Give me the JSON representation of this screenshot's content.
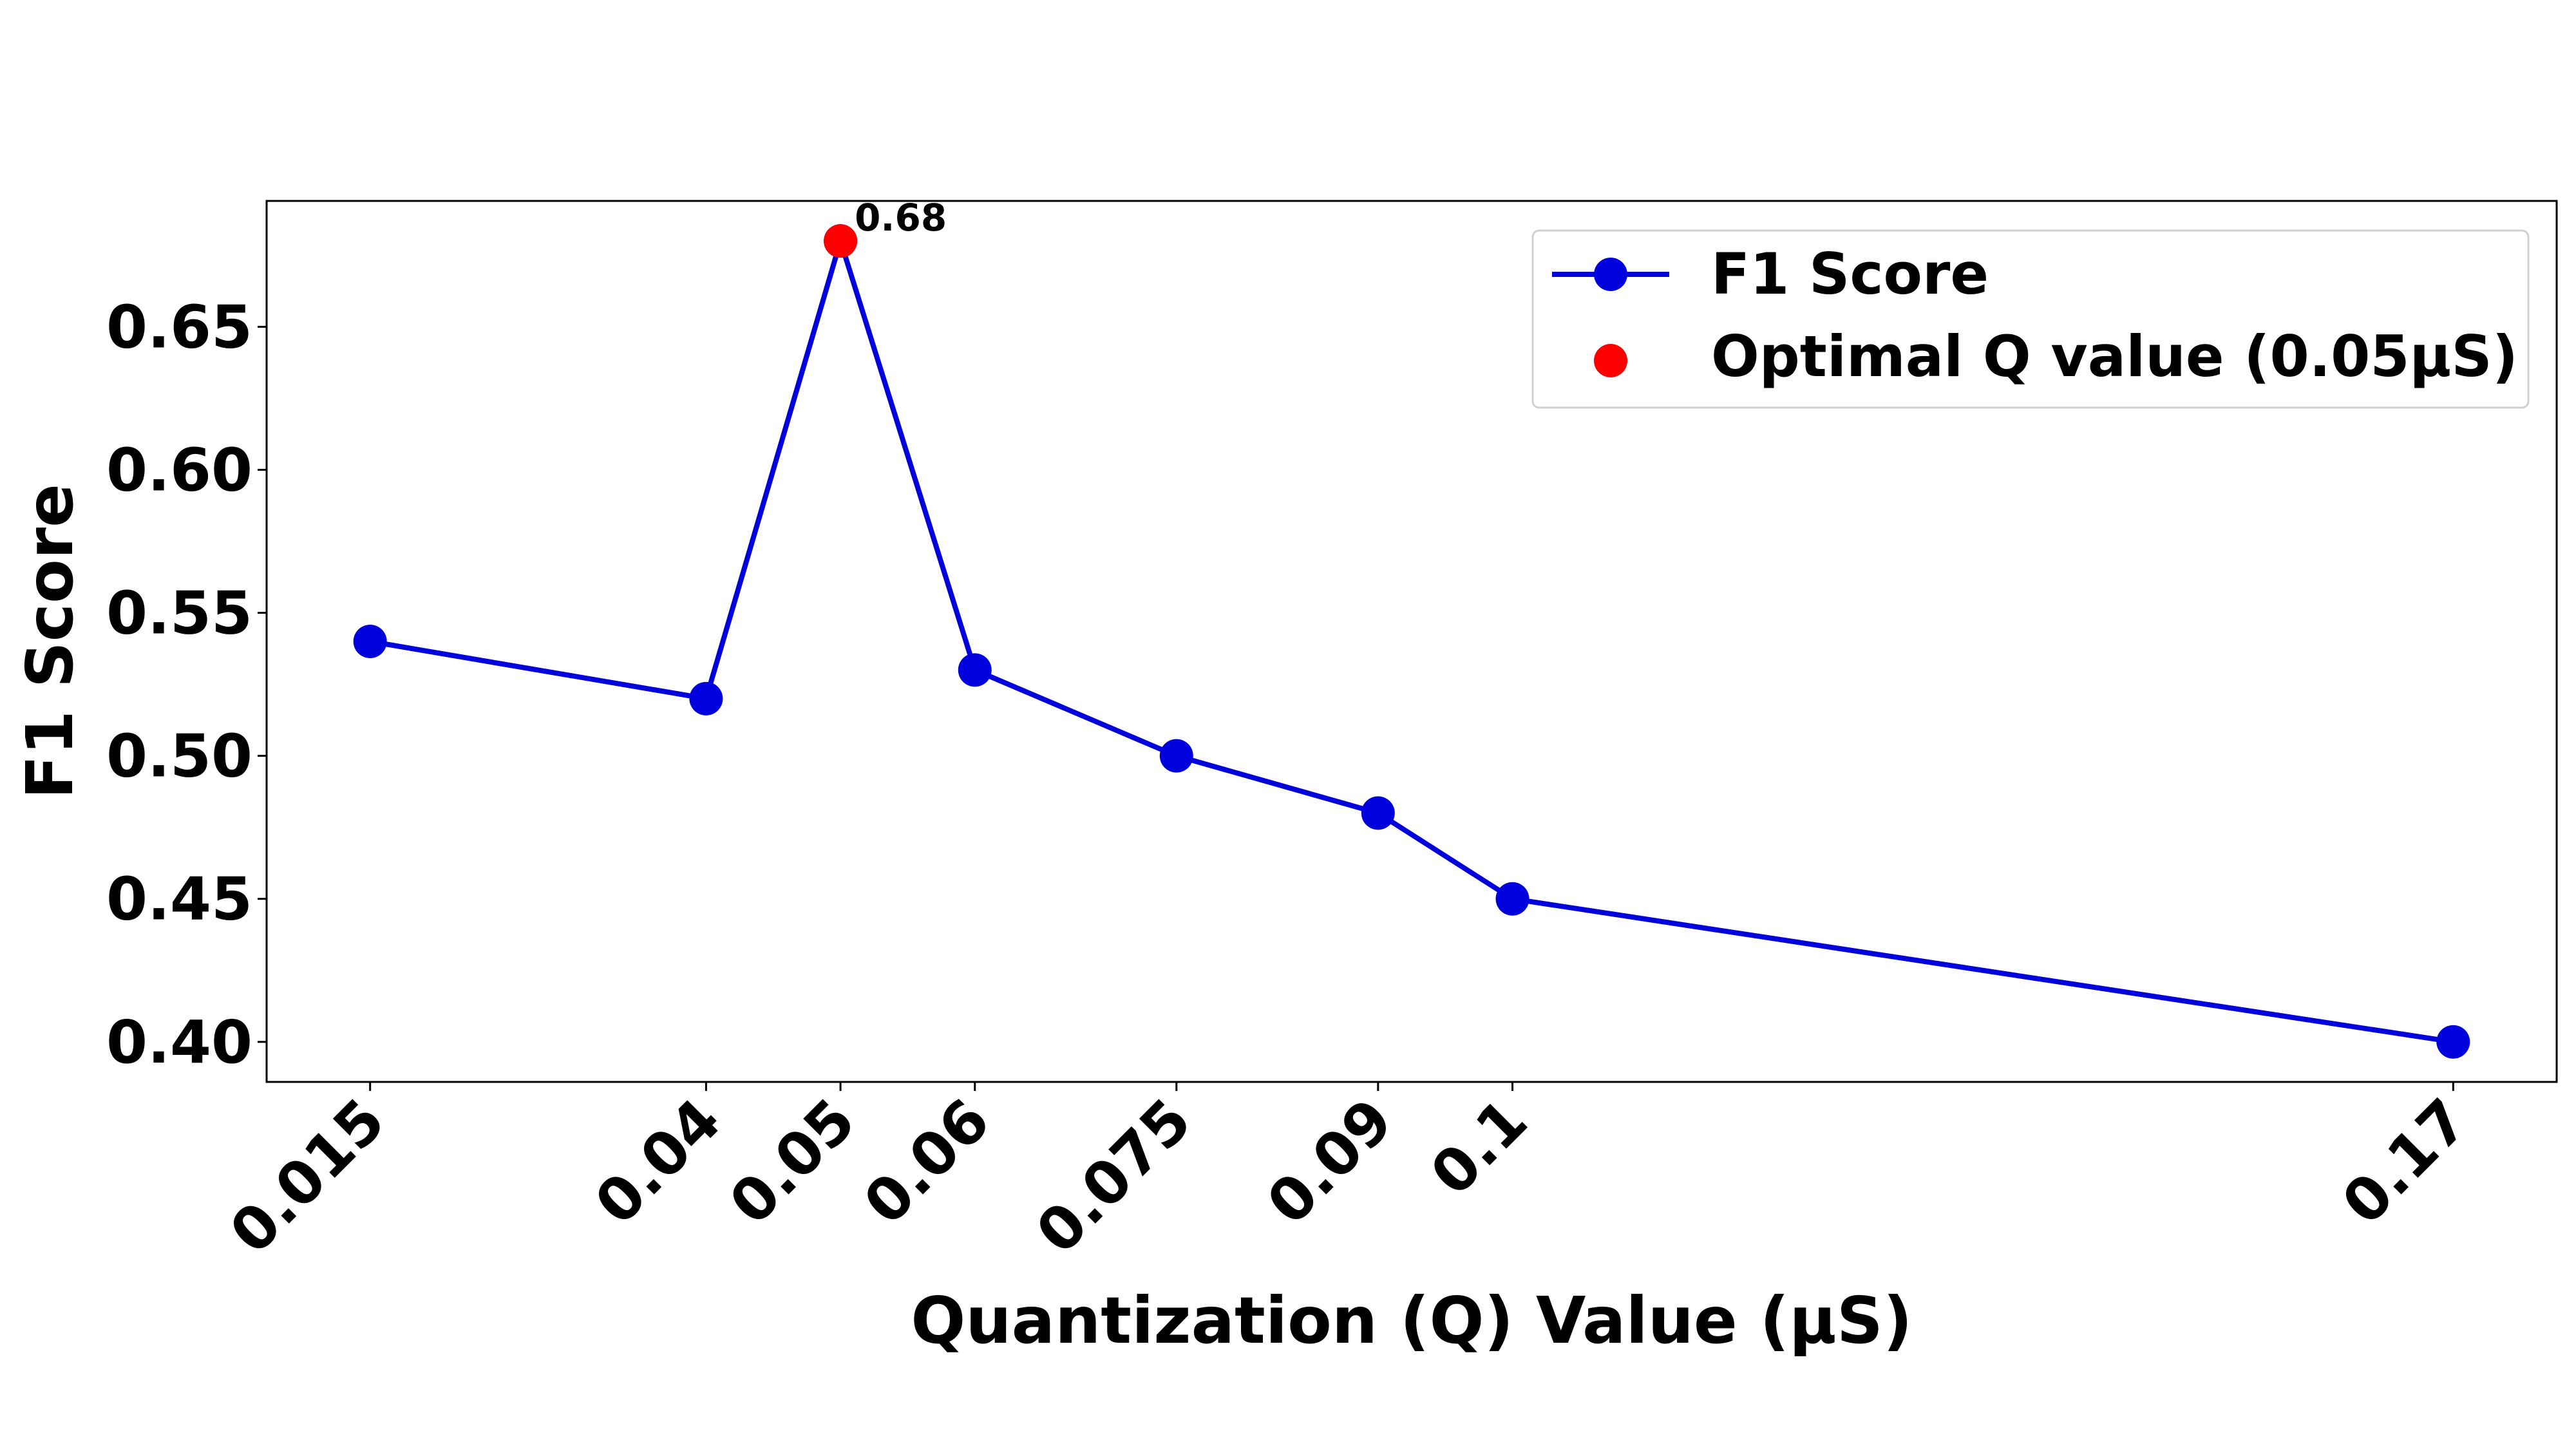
{
  "chart_data": {
    "type": "line",
    "title": "",
    "xlabel": "Quantization (Q) Value (µS)",
    "ylabel": "F1 Score",
    "x": [
      0.015,
      0.04,
      0.05,
      0.06,
      0.075,
      0.09,
      0.1,
      0.17
    ],
    "x_tick_labels": [
      "0.015",
      "0.04",
      "0.05",
      "0.06",
      "0.075",
      "0.09",
      "0.1",
      "0.17"
    ],
    "y_ticks": [
      0.4,
      0.45,
      0.5,
      0.55,
      0.6,
      0.65
    ],
    "y_tick_labels": [
      "0.40",
      "0.45",
      "0.50",
      "0.55",
      "0.60",
      "0.65"
    ],
    "ylim": [
      0.386,
      0.694
    ],
    "xlim": [
      0.0073,
      0.1777
    ],
    "grid": false,
    "legend_position": "top-right",
    "series": [
      {
        "name": "F1 Score",
        "values": [
          0.54,
          0.52,
          0.68,
          0.53,
          0.5,
          0.48,
          0.45,
          0.4
        ],
        "color": "#0000dd",
        "marker": "circle"
      }
    ],
    "highlight": {
      "name": "Optimal Q value (0.05µS)",
      "x": 0.05,
      "y": 0.68,
      "color": "#ff0000"
    },
    "annotations": [
      {
        "text": "0.68",
        "x": 0.05,
        "y": 0.68
      }
    ]
  }
}
